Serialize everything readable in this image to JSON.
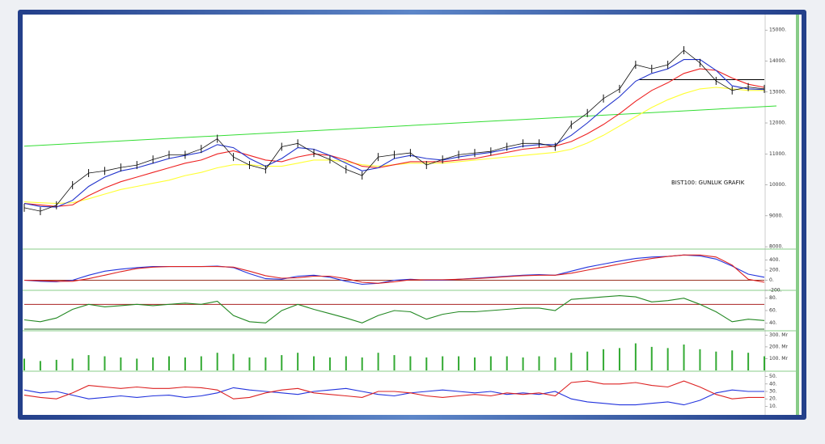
{
  "chart_data": [
    {
      "type": "line",
      "annotation": "BIST100: GUNLUK GRAFIK",
      "ylim": [
        7950,
        15450
      ],
      "yticks": [
        {
          "value": 15000,
          "label": "15000."
        },
        {
          "value": 14000,
          "label": "14000."
        },
        {
          "value": 13000,
          "label": "13000."
        },
        {
          "value": 12000,
          "label": "12000."
        },
        {
          "value": 11000,
          "label": "11000."
        },
        {
          "value": 10000,
          "label": "10000."
        },
        {
          "value": 9000,
          "label": "9000."
        },
        {
          "value": 8000,
          "label": "8000."
        }
      ],
      "trend_line": {
        "color": "#33dd33",
        "values": [
          11250,
          12550
        ]
      },
      "resistance": {
        "color": "#000000",
        "value": 13400
      },
      "series": [
        {
          "color": "#ffff33",
          "values": [
            9450,
            9420,
            9400,
            9420,
            9550,
            9700,
            9850,
            9950,
            10050,
            10150,
            10300,
            10400,
            10550,
            10650,
            10650,
            10600,
            10600,
            10700,
            10800,
            10800,
            10750,
            10650,
            10600,
            10650,
            10700,
            10700,
            10700,
            10750,
            10800,
            10850,
            10900,
            10950,
            11000,
            11050,
            11150,
            11350,
            11600,
            11900,
            12200,
            12500,
            12750,
            12950,
            13100,
            13150,
            13100,
            13050,
            13050
          ]
        },
        {
          "color": "#ee2222",
          "values": [
            9400,
            9350,
            9300,
            9350,
            9650,
            9900,
            10100,
            10250,
            10400,
            10550,
            10700,
            10800,
            11000,
            11100,
            10950,
            10800,
            10750,
            10900,
            11000,
            10950,
            10800,
            10600,
            10550,
            10650,
            10750,
            10750,
            10750,
            10800,
            10850,
            10950,
            11050,
            11150,
            11200,
            11250,
            11400,
            11650,
            11950,
            12300,
            12700,
            13050,
            13300,
            13600,
            13750,
            13700,
            13450,
            13250,
            13150
          ]
        },
        {
          "color": "#2233cc",
          "values": [
            9400,
            9300,
            9280,
            9500,
            9950,
            10250,
            10450,
            10550,
            10700,
            10850,
            10950,
            11050,
            11300,
            11200,
            10850,
            10600,
            10850,
            11200,
            11150,
            10950,
            10700,
            10450,
            10550,
            10850,
            10950,
            10850,
            10800,
            10900,
            10980,
            11050,
            11150,
            11250,
            11300,
            11300,
            11600,
            12000,
            12450,
            12850,
            13350,
            13600,
            13750,
            14050,
            14050,
            13700,
            13200,
            13100,
            13080
          ]
        },
        {
          "color": "#111111",
          "values": [
            9260,
            9150,
            9340,
            9990,
            10380,
            10450,
            10560,
            10640,
            10820,
            10970,
            10970,
            11160,
            11490,
            10900,
            10640,
            10500,
            11230,
            11340,
            11030,
            10820,
            10500,
            10300,
            10900,
            10970,
            11030,
            10640,
            10820,
            10970,
            11030,
            11080,
            11230,
            11340,
            11340,
            11230,
            11940,
            12320,
            12790,
            13100,
            13880,
            13750,
            13880,
            14350,
            13940,
            13360,
            13050,
            13160,
            13100
          ]
        }
      ]
    },
    {
      "type": "line",
      "ylim": [
        -200,
        600
      ],
      "yticks": [
        {
          "value": 400,
          "label": "400."
        },
        {
          "value": 200,
          "label": "200."
        },
        {
          "value": 0,
          "label": "0."
        },
        {
          "value": -200,
          "label": "-200."
        }
      ],
      "reference_line": {
        "color": "#993322",
        "value": 0
      },
      "series": [
        {
          "color": "#2233dd",
          "values": [
            0,
            -20,
            -30,
            0,
            100,
            180,
            220,
            250,
            270,
            270,
            270,
            270,
            280,
            250,
            130,
            30,
            20,
            80,
            100,
            60,
            -20,
            -80,
            -60,
            0,
            20,
            0,
            0,
            20,
            40,
            60,
            80,
            100,
            110,
            100,
            180,
            260,
            320,
            380,
            430,
            460,
            470,
            500,
            480,
            420,
            280,
            120,
            60
          ]
        },
        {
          "color": "#dd2222",
          "values": [
            0,
            -10,
            -20,
            -20,
            30,
            100,
            170,
            230,
            260,
            270,
            270,
            270,
            270,
            260,
            180,
            90,
            40,
            50,
            80,
            80,
            30,
            -40,
            -60,
            -30,
            10,
            10,
            10,
            20,
            30,
            50,
            70,
            90,
            100,
            100,
            140,
            200,
            260,
            320,
            380,
            430,
            470,
            500,
            500,
            460,
            300,
            20,
            -40
          ]
        }
      ]
    },
    {
      "type": "line",
      "ylim": [
        30,
        90
      ],
      "yticks": [
        {
          "value": 80,
          "label": "80."
        },
        {
          "value": 60,
          "label": "60."
        },
        {
          "value": 40,
          "label": "40."
        }
      ],
      "reference_lines": [
        {
          "color": "#aa2222",
          "value": 70
        },
        {
          "color": "#226622",
          "value": 30
        }
      ],
      "series": [
        {
          "color": "#228822",
          "values": [
            45,
            42,
            48,
            62,
            70,
            66,
            68,
            70,
            68,
            70,
            72,
            70,
            75,
            52,
            42,
            40,
            60,
            70,
            62,
            55,
            48,
            40,
            52,
            60,
            58,
            46,
            54,
            58,
            58,
            60,
            62,
            64,
            64,
            60,
            78,
            80,
            82,
            84,
            82,
            74,
            76,
            80,
            70,
            58,
            42,
            46,
            44
          ]
        }
      ]
    },
    {
      "type": "bar",
      "ylim": [
        0,
        330
      ],
      "color": "#33aa33",
      "yticks": [
        {
          "value": 300,
          "label": "300. Mr"
        },
        {
          "value": 200,
          "label": "200. Mr"
        },
        {
          "value": 100,
          "label": "100. Mr"
        }
      ],
      "values": [
        100,
        80,
        90,
        100,
        130,
        120,
        110,
        100,
        110,
        120,
        110,
        120,
        150,
        140,
        110,
        110,
        130,
        150,
        120,
        110,
        120,
        110,
        150,
        130,
        120,
        110,
        120,
        120,
        110,
        120,
        120,
        110,
        120,
        110,
        150,
        160,
        180,
        190,
        230,
        200,
        190,
        220,
        180,
        160,
        170,
        150,
        120
      ]
    },
    {
      "type": "line",
      "ylim": [
        5,
        55
      ],
      "yticks": [
        {
          "value": 50,
          "label": "50."
        },
        {
          "value": 40,
          "label": "40."
        },
        {
          "value": 30,
          "label": "30."
        },
        {
          "value": 20,
          "label": "20."
        },
        {
          "value": 10,
          "label": "10."
        }
      ],
      "series": [
        {
          "color": "#2233dd",
          "values": [
            32,
            28,
            30,
            25,
            20,
            22,
            24,
            22,
            24,
            25,
            22,
            24,
            28,
            35,
            32,
            30,
            28,
            26,
            30,
            32,
            34,
            30,
            26,
            24,
            28,
            30,
            32,
            30,
            28,
            30,
            26,
            28,
            26,
            30,
            20,
            16,
            14,
            12,
            12,
            14,
            16,
            12,
            18,
            28,
            32,
            30,
            30
          ]
        },
        {
          "color": "#dd2222",
          "values": [
            25,
            22,
            20,
            28,
            38,
            36,
            34,
            36,
            34,
            34,
            36,
            35,
            32,
            20,
            22,
            28,
            32,
            34,
            28,
            26,
            24,
            22,
            30,
            30,
            28,
            24,
            22,
            24,
            26,
            24,
            28,
            26,
            28,
            24,
            42,
            44,
            40,
            40,
            42,
            38,
            36,
            44,
            36,
            26,
            20,
            22,
            22
          ]
        }
      ]
    }
  ]
}
